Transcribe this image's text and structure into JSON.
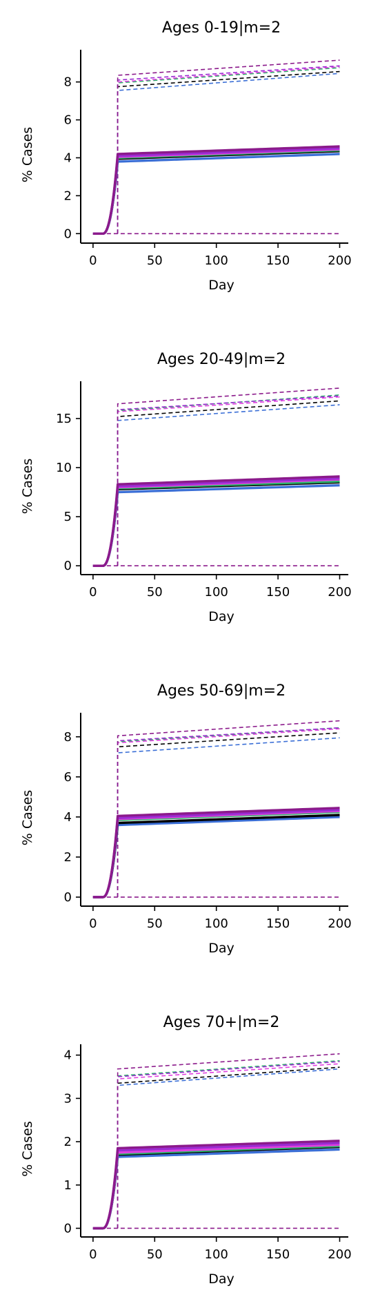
{
  "chart_data": [
    {
      "type": "line",
      "title": "Ages 0-19|m=2",
      "xlabel": "Day",
      "ylabel": "% Cases",
      "xlim": [
        -10,
        207
      ],
      "ylim": [
        -0.5,
        9.7
      ],
      "xticks": [
        0,
        50,
        100,
        150,
        200
      ],
      "yticks": [
        0,
        2,
        4,
        6,
        8
      ],
      "series_style_note": "solid = mean curves, dashed = upper/lower bands",
      "colors": [
        "#000000",
        "#3b6fd6",
        "#2db36a",
        "#e040e0",
        "#9b2bd1",
        "#8b1a8b"
      ],
      "curve": {
        "onset_day": 8,
        "jump_day": 20,
        "end_day": 200
      },
      "solid_levels": [
        {
          "color": "#3b6fd6",
          "at20": 3.8,
          "at200": 4.2
        },
        {
          "color": "#000000",
          "at20": 3.95,
          "at200": 4.35
        },
        {
          "color": "#2db36a",
          "at20": 4.0,
          "at200": 4.4
        },
        {
          "color": "#e040e0",
          "at20": 4.05,
          "at200": 4.45
        },
        {
          "color": "#9b2bd1",
          "at20": 4.1,
          "at200": 4.5
        },
        {
          "color": "#8b1a8b",
          "at20": 4.2,
          "at200": 4.6
        }
      ],
      "dashed_levels": [
        {
          "color": "#3b6fd6",
          "at20": 7.55,
          "at200": 8.45
        },
        {
          "color": "#000000",
          "at20": 7.75,
          "at200": 8.55
        },
        {
          "color": "#2db36a",
          "at20": 7.95,
          "at200": 8.75
        },
        {
          "color": "#e040e0",
          "at20": 8.0,
          "at200": 8.8
        },
        {
          "color": "#9b2bd1",
          "at20": 8.1,
          "at200": 8.85
        },
        {
          "color": "#8b1a8b",
          "at20": 8.35,
          "at200": 9.15
        }
      ],
      "zero_dashed": true
    },
    {
      "type": "line",
      "title": "Ages 20-49|m=2",
      "xlabel": "Day",
      "ylabel": "% Cases",
      "xlim": [
        -10,
        207
      ],
      "ylim": [
        -0.9,
        18.8
      ],
      "xticks": [
        0,
        50,
        100,
        150,
        200
      ],
      "yticks": [
        0,
        5,
        10,
        15
      ],
      "colors": [
        "#000000",
        "#3b6fd6",
        "#2db36a",
        "#e040e0",
        "#9b2bd1",
        "#8b1a8b"
      ],
      "curve": {
        "onset_day": 8,
        "jump_day": 20,
        "end_day": 200
      },
      "solid_levels": [
        {
          "color": "#3b6fd6",
          "at20": 7.5,
          "at200": 8.2
        },
        {
          "color": "#000000",
          "at20": 7.8,
          "at200": 8.5
        },
        {
          "color": "#2db36a",
          "at20": 7.9,
          "at200": 8.6
        },
        {
          "color": "#e040e0",
          "at20": 8.0,
          "at200": 8.8
        },
        {
          "color": "#9b2bd1",
          "at20": 8.1,
          "at200": 8.9
        },
        {
          "color": "#8b1a8b",
          "at20": 8.3,
          "at200": 9.1
        }
      ],
      "dashed_levels": [
        {
          "color": "#3b6fd6",
          "at20": 14.8,
          "at200": 16.4
        },
        {
          "color": "#000000",
          "at20": 15.2,
          "at200": 16.8
        },
        {
          "color": "#2db36a",
          "at20": 15.8,
          "at200": 17.4
        },
        {
          "color": "#e040e0",
          "at20": 15.7,
          "at200": 17.2
        },
        {
          "color": "#9b2bd1",
          "at20": 15.9,
          "at200": 17.3
        },
        {
          "color": "#8b1a8b",
          "at20": 16.5,
          "at200": 18.1
        }
      ],
      "zero_dashed": true
    },
    {
      "type": "line",
      "title": "Ages 50-69|m=2",
      "xlabel": "Day",
      "ylabel": "% Cases",
      "xlim": [
        -10,
        207
      ],
      "ylim": [
        -0.45,
        9.2
      ],
      "xticks": [
        0,
        50,
        100,
        150,
        200
      ],
      "yticks": [
        0,
        2,
        4,
        6,
        8
      ],
      "colors": [
        "#000000",
        "#3b6fd6",
        "#2db36a",
        "#e040e0",
        "#9b2bd1",
        "#8b1a8b"
      ],
      "curve": {
        "onset_day": 8,
        "jump_day": 20,
        "end_day": 200
      },
      "solid_levels": [
        {
          "color": "#3b6fd6",
          "at20": 3.6,
          "at200": 4.0
        },
        {
          "color": "#000000",
          "at20": 3.7,
          "at200": 4.1
        },
        {
          "color": "#2db36a",
          "at20": 3.85,
          "at200": 4.25
        },
        {
          "color": "#e040e0",
          "at20": 3.9,
          "at200": 4.3
        },
        {
          "color": "#9b2bd1",
          "at20": 3.95,
          "at200": 4.35
        },
        {
          "color": "#8b1a8b",
          "at20": 4.05,
          "at200": 4.45
        }
      ],
      "dashed_levels": [
        {
          "color": "#3b6fd6",
          "at20": 7.2,
          "at200": 7.95
        },
        {
          "color": "#000000",
          "at20": 7.5,
          "at200": 8.2
        },
        {
          "color": "#2db36a",
          "at20": 7.75,
          "at200": 8.45
        },
        {
          "color": "#e040e0",
          "at20": 7.7,
          "at200": 8.4
        },
        {
          "color": "#9b2bd1",
          "at20": 7.8,
          "at200": 8.45
        },
        {
          "color": "#8b1a8b",
          "at20": 8.05,
          "at200": 8.8
        }
      ],
      "zero_dashed": true
    },
    {
      "type": "line",
      "title": "Ages 70+|m=2",
      "xlabel": "Day",
      "ylabel": "% Cases",
      "xlim": [
        -10,
        207
      ],
      "ylim": [
        -0.2,
        4.25
      ],
      "xticks": [
        0,
        50,
        100,
        150,
        200
      ],
      "yticks": [
        0,
        1,
        2,
        3,
        4
      ],
      "colors": [
        "#000000",
        "#3b6fd6",
        "#2db36a",
        "#e040e0",
        "#9b2bd1",
        "#8b1a8b"
      ],
      "curve": {
        "onset_day": 8,
        "jump_day": 20,
        "end_day": 200
      },
      "solid_levels": [
        {
          "color": "#3b6fd6",
          "at20": 1.65,
          "at200": 1.82
        },
        {
          "color": "#000000",
          "at20": 1.7,
          "at200": 1.88
        },
        {
          "color": "#2db36a",
          "at20": 1.72,
          "at200": 1.9
        },
        {
          "color": "#e040e0",
          "at20": 1.75,
          "at200": 1.93
        },
        {
          "color": "#9b2bd1",
          "at20": 1.8,
          "at200": 1.97
        },
        {
          "color": "#8b1a8b",
          "at20": 1.85,
          "at200": 2.02
        }
      ],
      "dashed_levels": [
        {
          "color": "#3b6fd6",
          "at20": 3.3,
          "at200": 3.68
        },
        {
          "color": "#000000",
          "at20": 3.35,
          "at200": 3.72
        },
        {
          "color": "#2db36a",
          "at20": 3.52,
          "at200": 3.87
        },
        {
          "color": "#e040e0",
          "at20": 3.45,
          "at200": 3.8
        },
        {
          "color": "#9b2bd1",
          "at20": 3.5,
          "at200": 3.85
        },
        {
          "color": "#8b1a8b",
          "at20": 3.68,
          "at200": 4.03
        }
      ],
      "zero_dashed": true
    }
  ]
}
